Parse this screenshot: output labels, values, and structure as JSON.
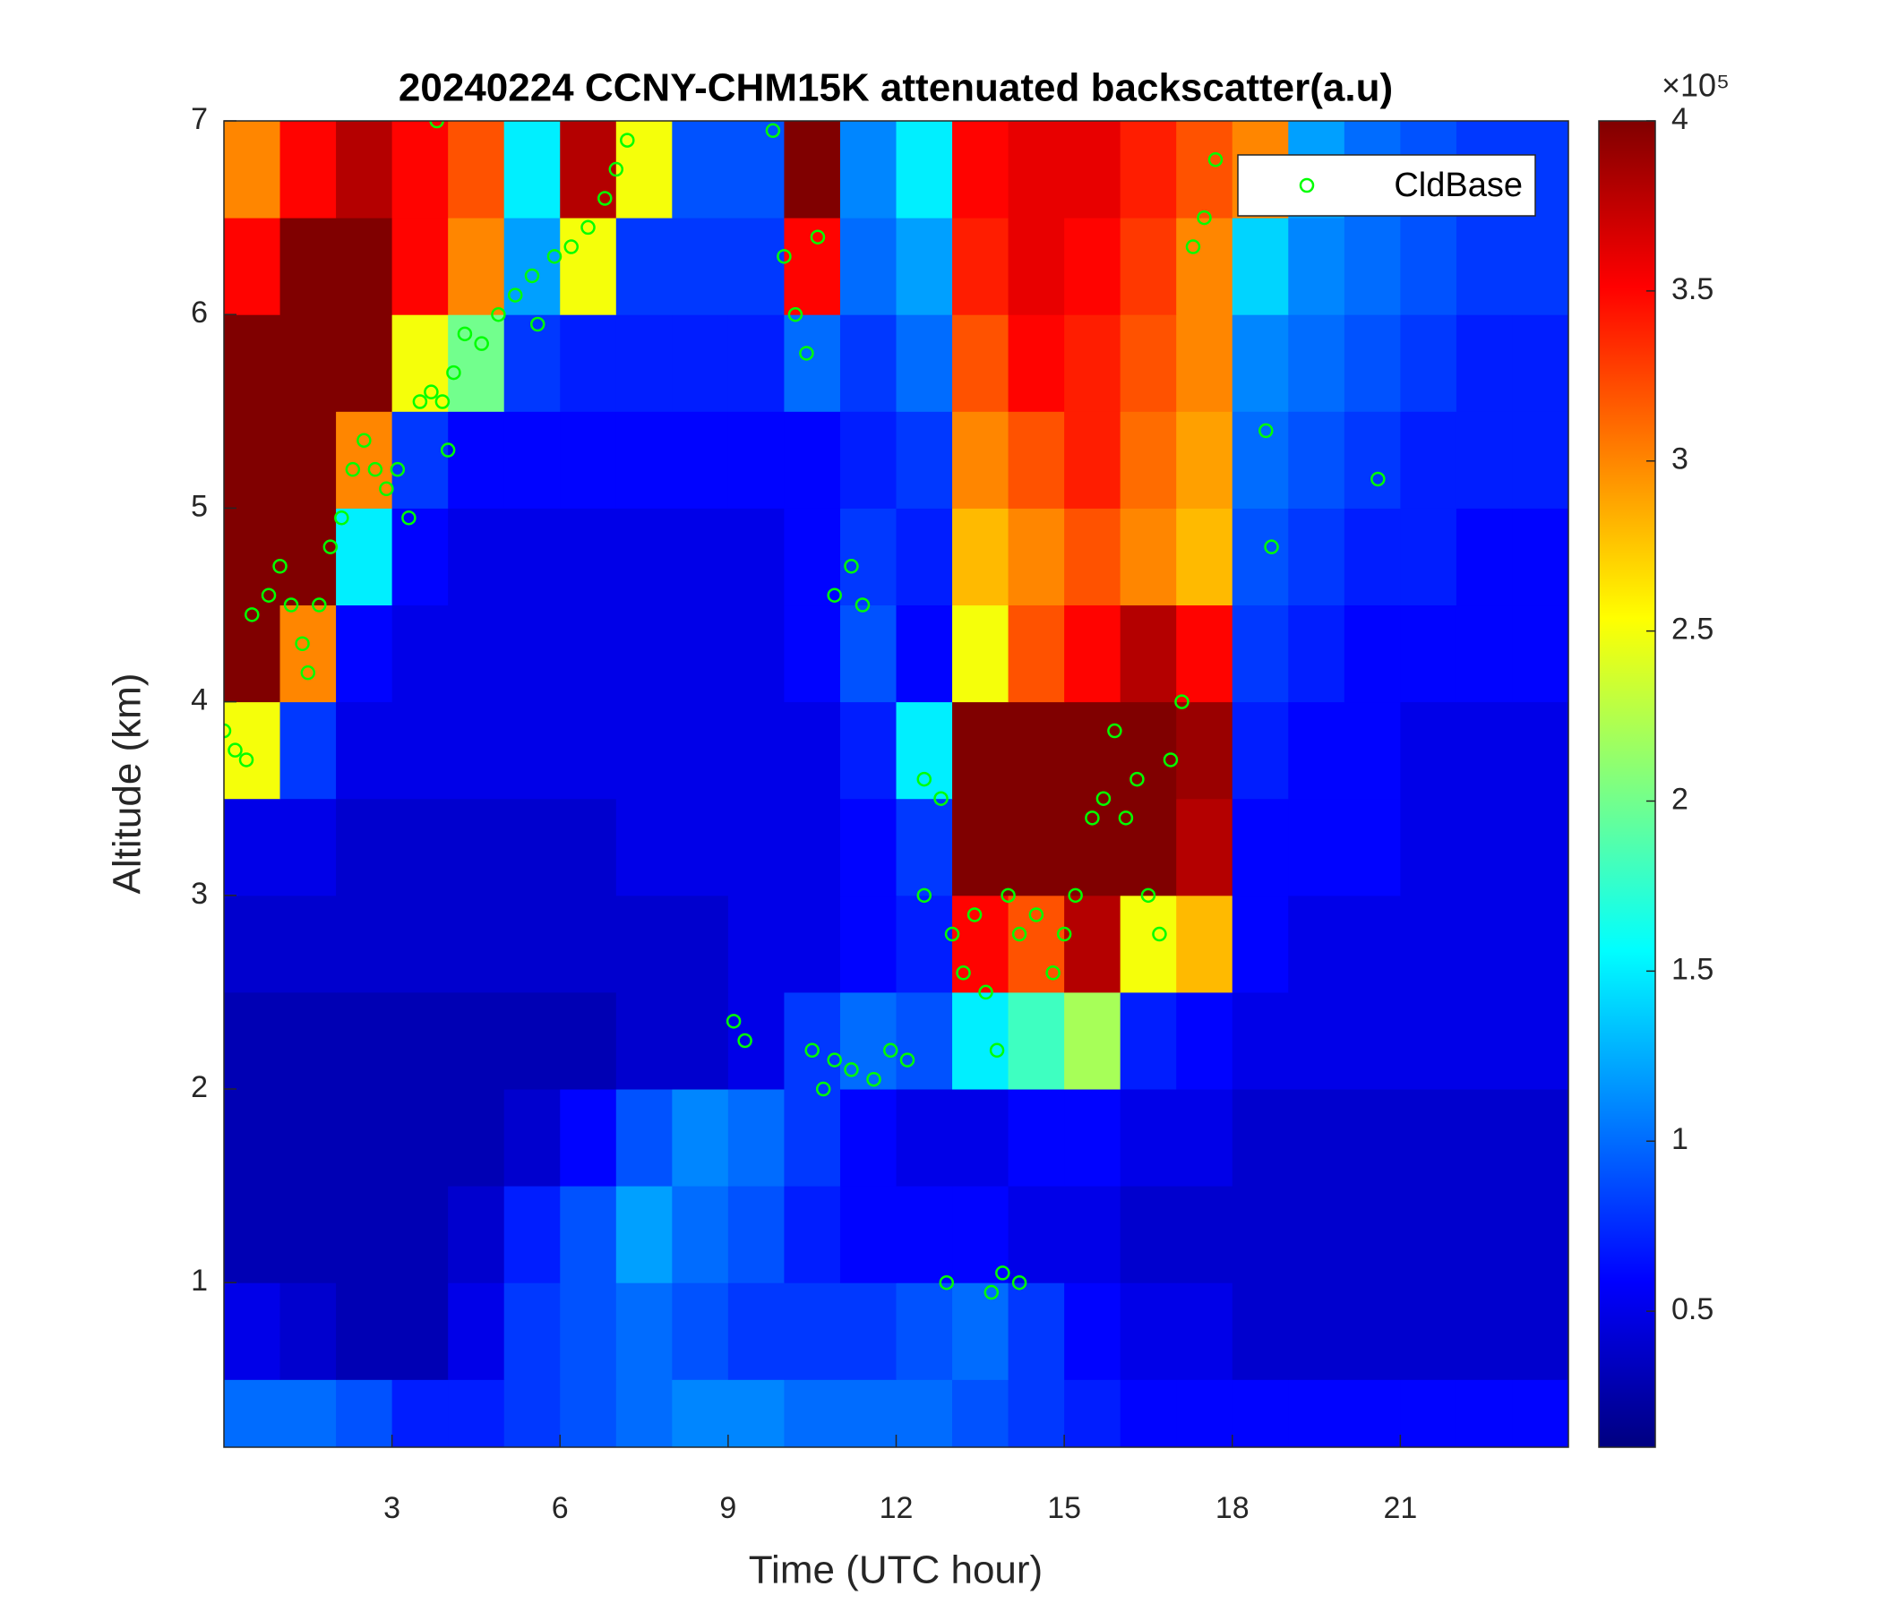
{
  "chart_data": {
    "type": "heatmap",
    "title": "20240224 CCNY-CHM15K attenuated backscatter(a.u)",
    "x_label": "Time (UTC hour)",
    "y_label": "Altitude (km)",
    "colorbar_exponent_label": "×10⁵",
    "xlim": [
      0,
      24
    ],
    "ylim": [
      0.15,
      7
    ],
    "clim": [
      0.1,
      4
    ],
    "xticks": [
      3,
      6,
      9,
      12,
      15,
      18,
      21
    ],
    "yticks": [
      1,
      2,
      3,
      4,
      5,
      6,
      7
    ],
    "cticks": [
      0.5,
      1,
      1.5,
      2,
      2.5,
      3,
      3.5,
      4
    ],
    "colormap": "jet",
    "x_edges": [
      0,
      1,
      2,
      3,
      4,
      5,
      6,
      7,
      8,
      9,
      10,
      11,
      12,
      13,
      14,
      15,
      16,
      17,
      18,
      19,
      20,
      21,
      22,
      23,
      24
    ],
    "y_edges": [
      0.15,
      0.5,
      1,
      1.5,
      2,
      2.5,
      3,
      3.5,
      4,
      4.5,
      5,
      5.5,
      6,
      6.5,
      7
    ],
    "z": [
      [
        1.0,
        1.0,
        0.9,
        0.7,
        0.7,
        0.8,
        0.9,
        1.0,
        1.1,
        1.1,
        1.0,
        1.0,
        1.0,
        0.9,
        0.8,
        0.7,
        0.6,
        0.6,
        0.6,
        0.6,
        0.6,
        0.6,
        0.6,
        0.6
      ],
      [
        0.5,
        0.4,
        0.3,
        0.3,
        0.5,
        0.8,
        0.9,
        1.0,
        0.9,
        0.8,
        0.8,
        0.8,
        0.9,
        1.0,
        0.8,
        0.6,
        0.5,
        0.5,
        0.4,
        0.4,
        0.4,
        0.4,
        0.4,
        0.4
      ],
      [
        0.3,
        0.3,
        0.3,
        0.3,
        0.4,
        0.7,
        0.9,
        1.2,
        1.0,
        0.9,
        0.7,
        0.6,
        0.6,
        0.6,
        0.5,
        0.5,
        0.4,
        0.4,
        0.4,
        0.4,
        0.4,
        0.4,
        0.4,
        0.4
      ],
      [
        0.3,
        0.3,
        0.3,
        0.3,
        0.3,
        0.4,
        0.6,
        0.9,
        1.1,
        1.0,
        0.8,
        0.6,
        0.5,
        0.5,
        0.6,
        0.6,
        0.5,
        0.5,
        0.4,
        0.4,
        0.4,
        0.4,
        0.4,
        0.4
      ],
      [
        0.3,
        0.3,
        0.3,
        0.3,
        0.3,
        0.3,
        0.3,
        0.4,
        0.4,
        0.5,
        0.8,
        1.0,
        0.9,
        1.5,
        1.8,
        2.2,
        0.7,
        0.6,
        0.5,
        0.5,
        0.5,
        0.5,
        0.5,
        0.5
      ],
      [
        0.4,
        0.4,
        0.4,
        0.4,
        0.4,
        0.4,
        0.4,
        0.4,
        0.4,
        0.5,
        0.5,
        0.6,
        0.7,
        3.5,
        3.2,
        3.8,
        2.5,
        2.8,
        0.6,
        0.5,
        0.5,
        0.5,
        0.5,
        0.5
      ],
      [
        0.5,
        0.5,
        0.4,
        0.4,
        0.4,
        0.4,
        0.4,
        0.5,
        0.5,
        0.5,
        0.5,
        0.6,
        0.8,
        4,
        4,
        4,
        4,
        3.8,
        0.6,
        0.6,
        0.6,
        0.5,
        0.5,
        0.5
      ],
      [
        2.5,
        0.8,
        0.5,
        0.5,
        0.5,
        0.5,
        0.5,
        0.5,
        0.5,
        0.5,
        0.5,
        0.7,
        1.5,
        4,
        4,
        4,
        4,
        3.9,
        0.7,
        0.6,
        0.6,
        0.5,
        0.5,
        0.5
      ],
      [
        4,
        3.0,
        0.6,
        0.5,
        0.5,
        0.5,
        0.5,
        0.5,
        0.5,
        0.5,
        0.6,
        0.9,
        0.6,
        2.5,
        3.2,
        3.5,
        3.8,
        3.5,
        0.8,
        0.7,
        0.6,
        0.6,
        0.6,
        0.6
      ],
      [
        4,
        4,
        1.5,
        0.6,
        0.5,
        0.5,
        0.5,
        0.5,
        0.5,
        0.5,
        0.6,
        0.8,
        0.7,
        2.8,
        3.0,
        3.2,
        3.0,
        2.8,
        0.9,
        0.8,
        0.7,
        0.7,
        0.6,
        0.6
      ],
      [
        4,
        4,
        3.0,
        0.8,
        0.6,
        0.6,
        0.6,
        0.6,
        0.6,
        0.6,
        0.6,
        0.7,
        0.8,
        3.0,
        3.2,
        3.4,
        3.1,
        2.9,
        1.0,
        0.9,
        0.8,
        0.7,
        0.7,
        0.7
      ],
      [
        4,
        4,
        4,
        2.5,
        2.0,
        0.8,
        0.7,
        0.7,
        0.7,
        0.7,
        1.0,
        0.8,
        1.0,
        3.2,
        3.5,
        3.4,
        3.2,
        3.0,
        1.1,
        1.0,
        0.9,
        0.8,
        0.7,
        0.7
      ],
      [
        3.5,
        4,
        4,
        3.5,
        3.0,
        1.2,
        2.5,
        0.8,
        0.8,
        0.8,
        3.5,
        1.0,
        1.2,
        3.4,
        3.6,
        3.5,
        3.3,
        3.0,
        1.4,
        1.1,
        1.0,
        0.9,
        0.8,
        0.8
      ],
      [
        3.0,
        3.5,
        3.8,
        3.5,
        3.2,
        1.5,
        3.8,
        2.5,
        0.9,
        0.9,
        4,
        1.1,
        1.5,
        3.5,
        3.6,
        3.6,
        3.4,
        3.2,
        3.0,
        1.2,
        1.0,
        0.9,
        0.8,
        0.8
      ]
    ],
    "legend": "northeast",
    "series": [
      {
        "name": "CldBase",
        "type": "scatter",
        "color": "#00ff00",
        "x": [
          0.0,
          0.2,
          0.4,
          0.5,
          0.8,
          1.0,
          1.2,
          1.4,
          1.5,
          1.7,
          1.9,
          2.1,
          2.3,
          2.5,
          2.7,
          2.9,
          3.1,
          3.3,
          3.5,
          3.7,
          3.9,
          4.0,
          4.1,
          4.3,
          4.6,
          4.9,
          5.2,
          5.5,
          5.6,
          5.9,
          6.2,
          6.5,
          6.8,
          7.0,
          7.2,
          3.8,
          9.8,
          10.0,
          10.2,
          10.4,
          10.6,
          10.9,
          11.2,
          11.4,
          9.1,
          9.3,
          10.5,
          10.7,
          10.9,
          11.2,
          11.6,
          11.9,
          12.2,
          12.5,
          12.5,
          12.8,
          13.0,
          13.2,
          13.4,
          13.6,
          13.8,
          14.0,
          14.2,
          14.5,
          14.8,
          15.0,
          15.2,
          15.5,
          15.7,
          15.9,
          16.1,
          16.3,
          16.5,
          16.7,
          16.9,
          17.1,
          17.3,
          17.5,
          17.7,
          18.6,
          18.7,
          20.6,
          12.9,
          13.7,
          13.9,
          14.2
        ],
        "y": [
          3.85,
          3.75,
          3.7,
          4.45,
          4.55,
          4.7,
          4.5,
          4.3,
          4.15,
          4.5,
          4.8,
          4.95,
          5.2,
          5.35,
          5.2,
          5.1,
          5.2,
          4.95,
          5.55,
          5.6,
          5.55,
          5.3,
          5.7,
          5.9,
          5.85,
          6.0,
          6.1,
          6.2,
          5.95,
          6.3,
          6.35,
          6.45,
          6.6,
          6.75,
          6.9,
          7.0,
          6.95,
          6.3,
          6.0,
          5.8,
          6.4,
          4.55,
          4.7,
          4.5,
          2.35,
          2.25,
          2.2,
          2.0,
          2.15,
          2.1,
          2.05,
          2.2,
          2.15,
          3.6,
          3.0,
          3.5,
          2.8,
          2.6,
          2.9,
          2.5,
          2.2,
          3.0,
          2.8,
          2.9,
          2.6,
          2.8,
          3.0,
          3.4,
          3.5,
          3.85,
          3.4,
          3.6,
          3.0,
          2.8,
          3.7,
          4.0,
          6.35,
          6.5,
          6.8,
          5.4,
          4.8,
          5.15,
          1.0,
          0.95,
          1.05,
          1.0
        ]
      }
    ]
  }
}
